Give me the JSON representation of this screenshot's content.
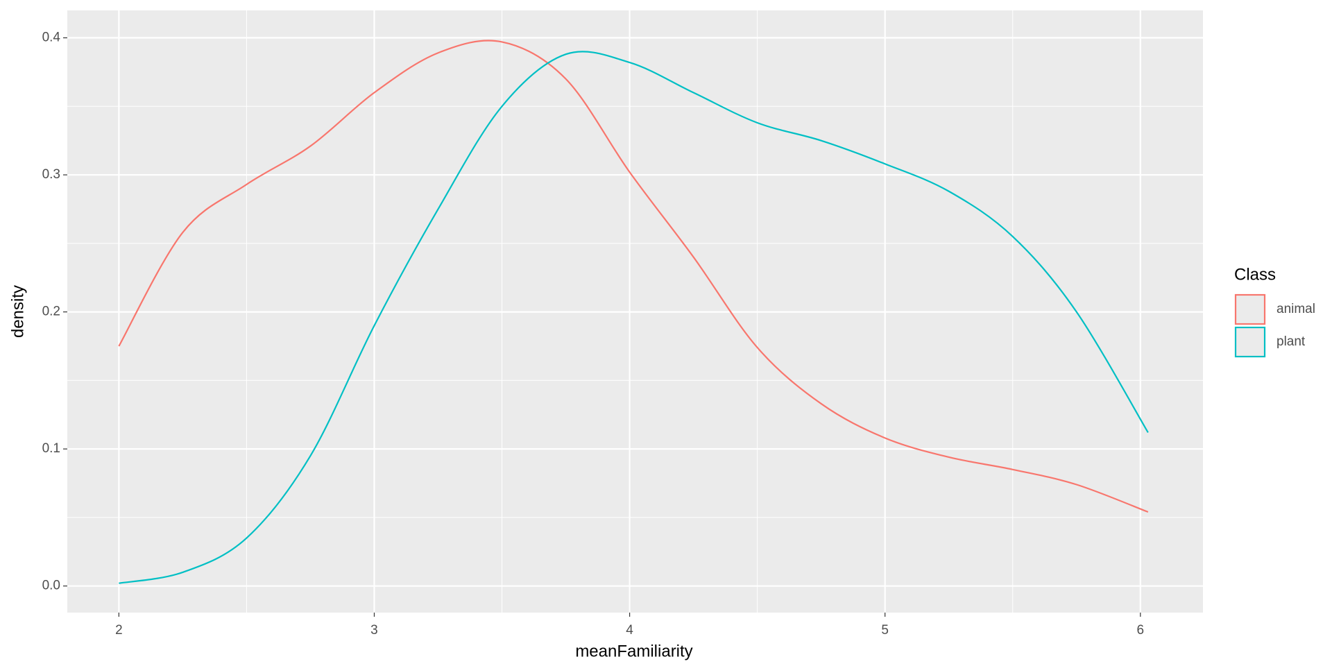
{
  "chart_data": {
    "type": "line",
    "x_label": "meanFamiliarity",
    "y_label": "density",
    "legend_title": "Class",
    "legend_position": "right",
    "x": [
      2,
      2.25,
      2.5,
      2.75,
      3,
      3.25,
      3.5,
      3.75,
      4,
      4.25,
      4.5,
      4.75,
      5,
      5.25,
      5.5,
      5.75,
      6.03
    ],
    "series": [
      {
        "name": "animal",
        "color": "#f8766d",
        "values": [
          0.175,
          0.258,
          0.293,
          0.321,
          0.36,
          0.389,
          0.397,
          0.37,
          0.302,
          0.24,
          0.174,
          0.133,
          0.108,
          0.094,
          0.085,
          0.074,
          0.054
        ]
      },
      {
        "name": "plant",
        "color": "#00bfc4",
        "values": [
          0.002,
          0.01,
          0.035,
          0.095,
          0.19,
          0.275,
          0.35,
          0.388,
          0.382,
          0.36,
          0.338,
          0.325,
          0.308,
          0.288,
          0.255,
          0.2,
          0.112
        ]
      }
    ],
    "xlim": [
      1.798,
      6.245
    ],
    "ylim": [
      -0.0194,
      0.42
    ],
    "xticks": [
      2,
      3,
      4,
      5,
      6
    ],
    "yticks": [
      {
        "value": 0,
        "label": "0.0"
      },
      0.1,
      0.2,
      0.3,
      0.4
    ],
    "grid": true
  }
}
